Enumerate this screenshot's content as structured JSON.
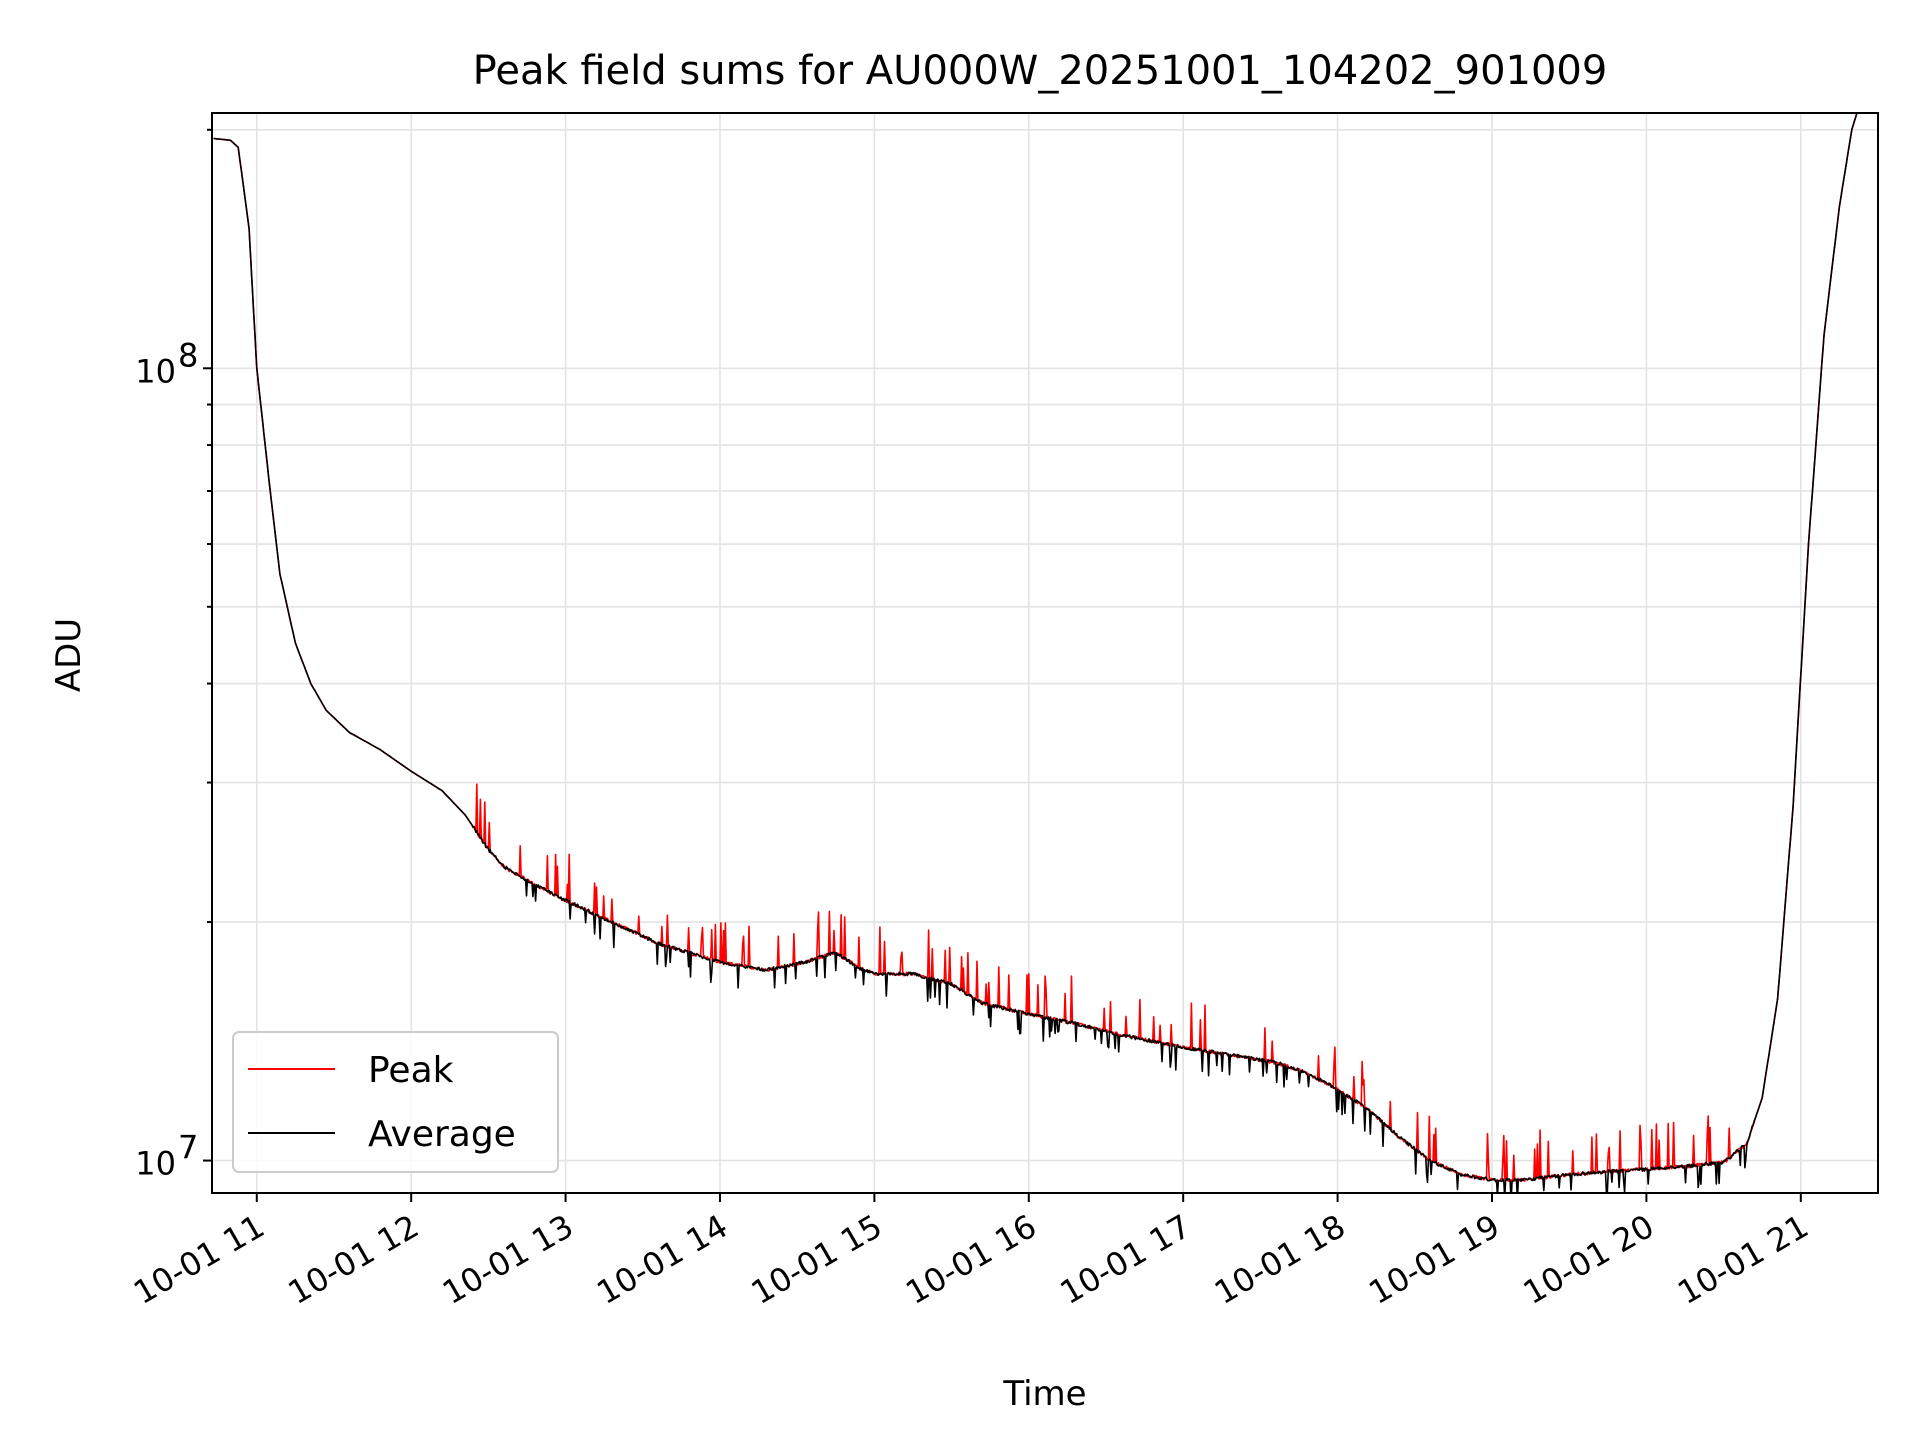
{
  "chart_data": {
    "type": "line",
    "title": "Peak field sums for AU000W_20251001_104202_901009",
    "xlabel": "Time",
    "ylabel": "ADU",
    "yscale": "log",
    "ylim": [
      9100000,
      210000000
    ],
    "xlim_hours": [
      10.71,
      21.5
    ],
    "grid": true,
    "legend_position": "lower-left",
    "x_ticks": [
      {
        "hour": 11,
        "label": "10-01 11"
      },
      {
        "hour": 12,
        "label": "10-01 12"
      },
      {
        "hour": 13,
        "label": "10-01 13"
      },
      {
        "hour": 14,
        "label": "10-01 14"
      },
      {
        "hour": 15,
        "label": "10-01 15"
      },
      {
        "hour": 16,
        "label": "10-01 16"
      },
      {
        "hour": 17,
        "label": "10-01 17"
      },
      {
        "hour": 18,
        "label": "10-01 18"
      },
      {
        "hour": 19,
        "label": "10-01 19"
      },
      {
        "hour": 20,
        "label": "10-01 20"
      },
      {
        "hour": 21,
        "label": "10-01 21"
      }
    ],
    "y_major_ticks": [
      {
        "value": 10000000,
        "base": "10",
        "exp": "7"
      },
      {
        "value": 100000000,
        "base": "10",
        "exp": "8"
      }
    ],
    "y_minor_ticks": [
      20000000,
      30000000,
      40000000,
      50000000,
      60000000,
      70000000,
      80000000,
      90000000,
      200000000
    ],
    "series": [
      {
        "name": "Peak",
        "color": "#ff0000",
        "points": [
          [
            10.72,
            195000000
          ],
          [
            10.83,
            194000000
          ],
          [
            10.88,
            190000000
          ],
          [
            10.95,
            150000000
          ],
          [
            11.0,
            100000000
          ],
          [
            11.08,
            72000000
          ],
          [
            11.15,
            55000000
          ],
          [
            11.25,
            45000000
          ],
          [
            11.35,
            40000000
          ],
          [
            11.45,
            37000000
          ],
          [
            11.6,
            34700000
          ],
          [
            11.8,
            33000000
          ],
          [
            12.0,
            31000000
          ],
          [
            12.2,
            29300000
          ],
          [
            12.35,
            27300000
          ],
          [
            12.5,
            24700000
          ],
          [
            12.6,
            23500000
          ],
          [
            12.8,
            22300000
          ],
          [
            13.0,
            21300000
          ],
          [
            13.3,
            20000000
          ],
          [
            13.6,
            18800000
          ],
          [
            14.0,
            17800000
          ],
          [
            14.3,
            17400000
          ],
          [
            14.55,
            17800000
          ],
          [
            14.75,
            18300000
          ],
          [
            14.9,
            17500000
          ],
          [
            15.0,
            17200000
          ],
          [
            15.25,
            17200000
          ],
          [
            15.5,
            16700000
          ],
          [
            15.7,
            15800000
          ],
          [
            16.0,
            15300000
          ],
          [
            16.3,
            14900000
          ],
          [
            16.6,
            14400000
          ],
          [
            17.0,
            13900000
          ],
          [
            17.3,
            13600000
          ],
          [
            17.6,
            13300000
          ],
          [
            17.8,
            12900000
          ],
          [
            18.0,
            12300000
          ],
          [
            18.2,
            11600000
          ],
          [
            18.4,
            10700000
          ],
          [
            18.6,
            10000000
          ],
          [
            18.8,
            9600000
          ],
          [
            19.0,
            9450000
          ],
          [
            19.2,
            9450000
          ],
          [
            19.5,
            9600000
          ],
          [
            19.8,
            9700000
          ],
          [
            20.0,
            9750000
          ],
          [
            20.3,
            9850000
          ],
          [
            20.5,
            9950000
          ],
          [
            20.65,
            10500000
          ],
          [
            20.75,
            12000000
          ],
          [
            20.85,
            16000000
          ],
          [
            20.95,
            28000000
          ],
          [
            21.05,
            60000000
          ],
          [
            21.15,
            110000000
          ],
          [
            21.25,
            160000000
          ],
          [
            21.33,
            200000000
          ],
          [
            21.38,
            215000000
          ]
        ]
      },
      {
        "name": "Average",
        "color": "#000000",
        "points": [
          [
            10.72,
            195000000
          ],
          [
            10.83,
            194000000
          ],
          [
            10.88,
            190000000
          ],
          [
            10.95,
            150000000
          ],
          [
            11.0,
            100000000
          ],
          [
            11.08,
            72000000
          ],
          [
            11.15,
            55000000
          ],
          [
            11.25,
            45000000
          ],
          [
            11.35,
            40000000
          ],
          [
            11.45,
            37000000
          ],
          [
            11.6,
            34700000
          ],
          [
            11.8,
            33000000
          ],
          [
            12.0,
            31000000
          ],
          [
            12.2,
            29300000
          ],
          [
            12.35,
            27300000
          ],
          [
            12.5,
            24700000
          ],
          [
            12.6,
            23500000
          ],
          [
            12.8,
            22300000
          ],
          [
            13.0,
            21300000
          ],
          [
            13.3,
            20000000
          ],
          [
            13.6,
            18800000
          ],
          [
            14.0,
            17800000
          ],
          [
            14.3,
            17400000
          ],
          [
            14.55,
            17800000
          ],
          [
            14.75,
            18300000
          ],
          [
            14.9,
            17500000
          ],
          [
            15.0,
            17200000
          ],
          [
            15.25,
            17200000
          ],
          [
            15.5,
            16700000
          ],
          [
            15.7,
            15800000
          ],
          [
            16.0,
            15300000
          ],
          [
            16.3,
            14900000
          ],
          [
            16.6,
            14400000
          ],
          [
            17.0,
            13900000
          ],
          [
            17.3,
            13600000
          ],
          [
            17.6,
            13300000
          ],
          [
            17.8,
            12900000
          ],
          [
            18.0,
            12300000
          ],
          [
            18.2,
            11600000
          ],
          [
            18.4,
            10700000
          ],
          [
            18.6,
            10000000
          ],
          [
            18.8,
            9600000
          ],
          [
            19.0,
            9450000
          ],
          [
            19.2,
            9450000
          ],
          [
            19.5,
            9600000
          ],
          [
            19.8,
            9700000
          ],
          [
            20.0,
            9750000
          ],
          [
            20.3,
            9850000
          ],
          [
            20.5,
            9950000
          ],
          [
            20.65,
            10500000
          ],
          [
            20.75,
            12000000
          ],
          [
            20.85,
            16000000
          ],
          [
            20.95,
            28000000
          ],
          [
            21.05,
            60000000
          ],
          [
            21.15,
            110000000
          ],
          [
            21.25,
            160000000
          ],
          [
            21.33,
            200000000
          ],
          [
            21.38,
            215000000
          ]
        ]
      }
    ],
    "legend": {
      "peak_label": "Peak",
      "average_label": "Average"
    }
  }
}
